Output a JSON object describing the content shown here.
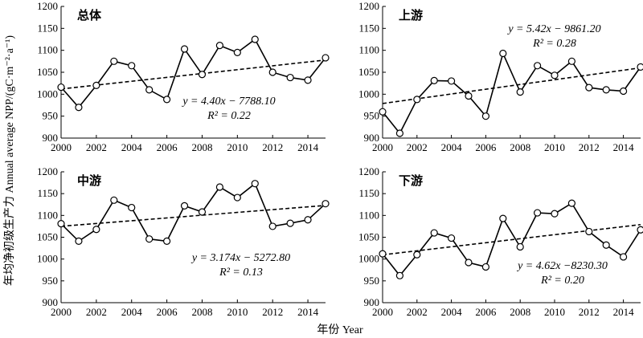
{
  "figure": {
    "xlabel": "年份 Year",
    "ylabel": "年均净初级生产力 Annual average NPP/(gC·m⁻²·a⁻¹)"
  },
  "chart_data": [
    {
      "type": "line",
      "title": "总体",
      "x": [
        2000,
        2001,
        2002,
        2003,
        2004,
        2005,
        2006,
        2007,
        2008,
        2009,
        2010,
        2011,
        2012,
        2013,
        2014,
        2015
      ],
      "xticks": [
        "2000",
        "2002",
        "2004",
        "2006",
        "2008",
        "2010",
        "2012",
        "2014"
      ],
      "xlim": [
        2000,
        2015
      ],
      "ylim": [
        900,
        1200
      ],
      "yticks": [
        900,
        950,
        1000,
        1050,
        1100,
        1150,
        1200
      ],
      "series": [
        {
          "values": [
            1016,
            970,
            1020,
            1075,
            1065,
            1010,
            988,
            1103,
            1045,
            1111,
            1095,
            1125,
            1050,
            1038,
            1032,
            1083
          ]
        }
      ],
      "trend": {
        "slope": 4.4,
        "intercept": -7788.1
      },
      "equation": "y = 4.40x −  7788.10",
      "r2": "R² = 0.22"
    },
    {
      "type": "line",
      "title": "上游",
      "x": [
        2000,
        2001,
        2002,
        2003,
        2004,
        2005,
        2006,
        2007,
        2008,
        2009,
        2010,
        2011,
        2012,
        2013,
        2014,
        2015
      ],
      "xticks": [
        "2000",
        "2002",
        "2004",
        "2006",
        "2008",
        "2010",
        "2012",
        "2014"
      ],
      "xlim": [
        2000,
        2015
      ],
      "ylim": [
        900,
        1200
      ],
      "yticks": [
        900,
        950,
        1000,
        1050,
        1100,
        1150,
        1200
      ],
      "series": [
        {
          "values": [
            960,
            911,
            988,
            1031,
            1030,
            996,
            950,
            1093,
            1005,
            1065,
            1043,
            1075,
            1015,
            1010,
            1007,
            1062
          ]
        }
      ],
      "trend": {
        "slope": 5.42,
        "intercept": -9861.2
      },
      "equation": "y = 5.42x −  9861.20",
      "r2": "R² = 0.28"
    },
    {
      "type": "line",
      "title": "中游",
      "x": [
        2000,
        2001,
        2002,
        2003,
        2004,
        2005,
        2006,
        2007,
        2008,
        2009,
        2010,
        2011,
        2012,
        2013,
        2014,
        2015
      ],
      "xticks": [
        "2000",
        "2002",
        "2004",
        "2006",
        "2008",
        "2010",
        "2012",
        "2014"
      ],
      "xlim": [
        2000,
        2015
      ],
      "ylim": [
        900,
        1200
      ],
      "yticks": [
        900,
        950,
        1000,
        1050,
        1100,
        1150,
        1200
      ],
      "series": [
        {
          "values": [
            1081,
            1041,
            1068,
            1135,
            1118,
            1046,
            1041,
            1122,
            1108,
            1165,
            1141,
            1173,
            1075,
            1082,
            1090,
            1127
          ]
        }
      ],
      "trend": {
        "slope": 3.174,
        "intercept": -5272.8
      },
      "equation": "y = 3.174x −  5272.80",
      "r2": "R² = 0.13"
    },
    {
      "type": "line",
      "title": "下游",
      "x": [
        2000,
        2001,
        2002,
        2003,
        2004,
        2005,
        2006,
        2007,
        2008,
        2009,
        2010,
        2011,
        2012,
        2013,
        2014,
        2015
      ],
      "xticks": [
        "2000",
        "2002",
        "2004",
        "2006",
        "2008",
        "2010",
        "2012",
        "2014"
      ],
      "xlim": [
        2000,
        2015
      ],
      "ylim": [
        900,
        1200
      ],
      "yticks": [
        900,
        950,
        1000,
        1050,
        1100,
        1150,
        1200
      ],
      "series": [
        {
          "values": [
            1012,
            962,
            1010,
            1060,
            1048,
            992,
            982,
            1093,
            1028,
            1106,
            1104,
            1128,
            1063,
            1032,
            1005,
            1067
          ]
        }
      ],
      "trend": {
        "slope": 4.62,
        "intercept": -8230.3
      },
      "equation": "y = 4.62x −8230.30",
      "r2": "R² = 0.20"
    }
  ]
}
